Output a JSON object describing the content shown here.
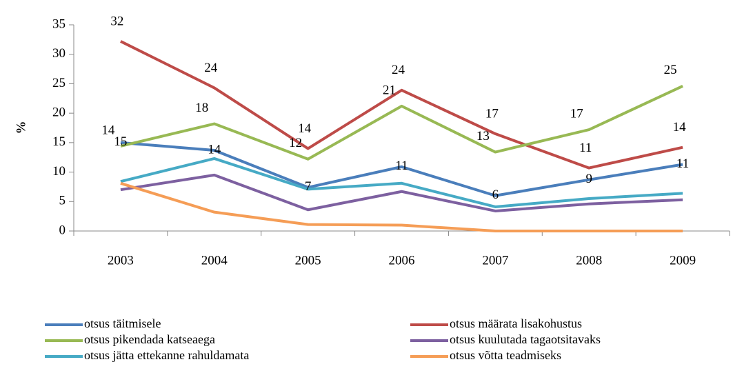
{
  "chart_data": {
    "type": "line",
    "y_label": "%",
    "categories": [
      "2003",
      "2004",
      "2005",
      "2006",
      "2007",
      "2008",
      "2009"
    ],
    "ylim": [
      0,
      35
    ],
    "yticks": [
      0,
      5,
      10,
      15,
      20,
      25,
      30,
      35
    ],
    "legend": "bottom",
    "series": [
      {
        "name": "otsus täitmisele",
        "color": "#4a7ebb",
        "values": [
          15.0,
          13.7,
          7.4,
          10.9,
          6.0,
          8.7,
          11.3
        ],
        "value_labels": [
          "15",
          "14",
          "7",
          "11",
          "6",
          "9",
          "11"
        ]
      },
      {
        "name": "otsus määrata lisakohustus",
        "color": "#be4b48",
        "values": [
          32.2,
          24.3,
          14.0,
          23.9,
          16.5,
          10.7,
          14.2
        ],
        "value_labels": [
          "32",
          "24",
          "14",
          "24",
          "17",
          "11",
          "14"
        ]
      },
      {
        "name": "otsus pikendada katseaega",
        "color": "#98b954",
        "values": [
          14.4,
          18.2,
          12.2,
          21.2,
          13.4,
          17.2,
          24.6
        ],
        "value_labels": [
          "14",
          "18",
          "12",
          "21",
          "13",
          "17",
          "25"
        ]
      },
      {
        "name": "otsus kuulutada tagaotsitavaks",
        "color": "#7d60a0",
        "values": [
          7.0,
          9.5,
          3.6,
          6.7,
          3.4,
          4.6,
          5.3
        ]
      },
      {
        "name": "otsus jätta ettekanne rahuldamata",
        "color": "#46aac5",
        "values": [
          8.4,
          12.3,
          7.1,
          8.1,
          4.1,
          5.5,
          6.4
        ]
      },
      {
        "name": "otsus võtta teadmiseks",
        "color": "#f59d56",
        "values": [
          8.1,
          3.2,
          1.1,
          1.0,
          0,
          0,
          0
        ]
      }
    ]
  }
}
